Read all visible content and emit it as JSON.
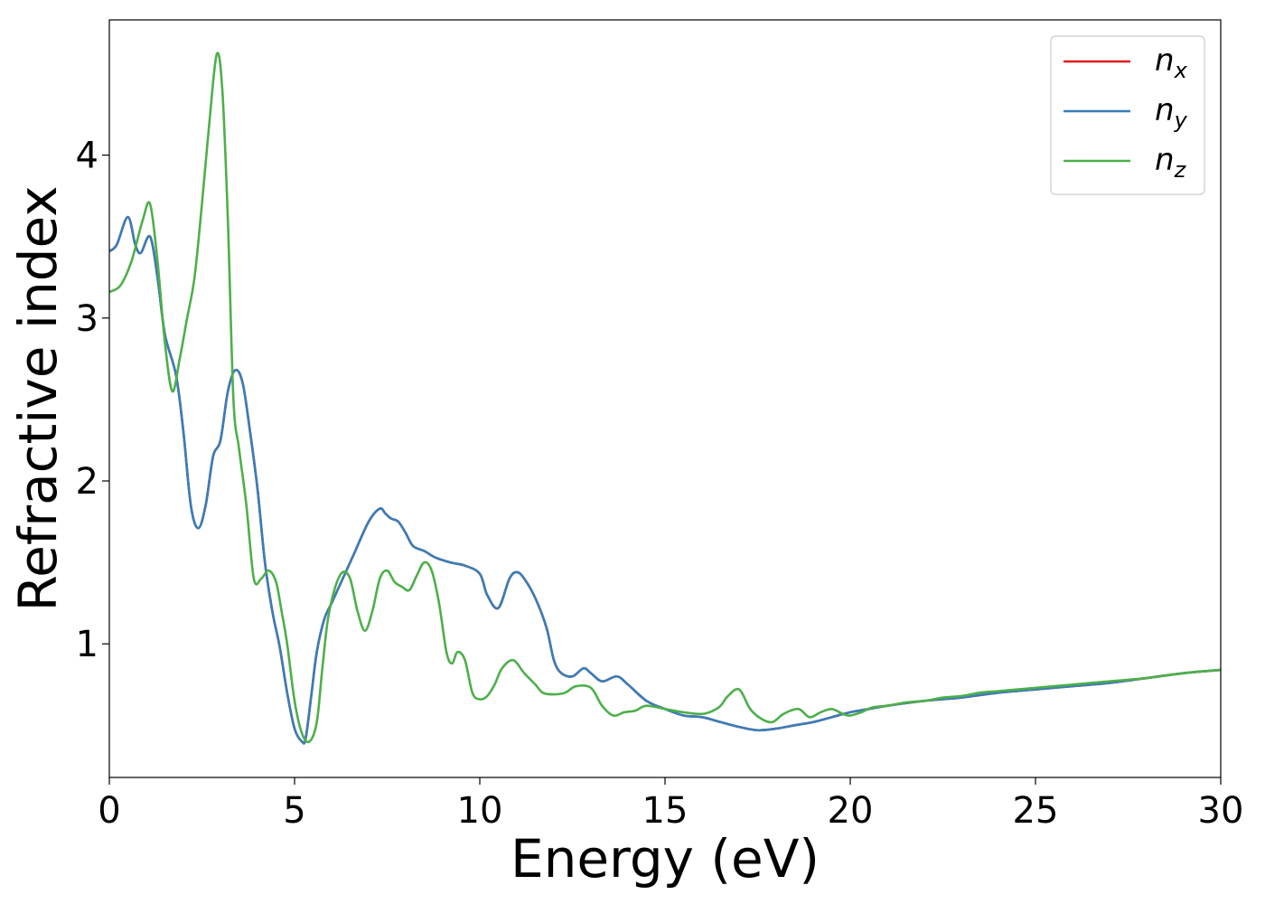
{
  "chart_data": {
    "type": "line",
    "title": "",
    "xlabel": "Energy (eV)",
    "ylabel": "Refractive index",
    "xlim": [
      0,
      30
    ],
    "ylim": [
      0.18,
      4.83
    ],
    "xticks": [
      0,
      5,
      10,
      15,
      20,
      25,
      30
    ],
    "yticks": [
      1,
      2,
      3,
      4
    ],
    "grid": false,
    "legend_position": "top-right",
    "series": [
      {
        "name": "n_x",
        "label_base": "n",
        "label_sub": "x",
        "color": "#e41a1c",
        "x": [
          0,
          0.2,
          0.5,
          0.7,
          0.85,
          1.1,
          1.3,
          1.5,
          1.8,
          2.0,
          2.2,
          2.4,
          2.6,
          2.8,
          3.0,
          3.2,
          3.4,
          3.6,
          3.8,
          4.0,
          4.2,
          4.4,
          4.6,
          4.8,
          5.0,
          5.2,
          5.3,
          5.45,
          5.6,
          5.8,
          6.0,
          6.3,
          6.6,
          7.0,
          7.3,
          7.45,
          7.6,
          7.8,
          8.0,
          8.2,
          8.5,
          8.8,
          9.2,
          9.6,
          10.0,
          10.2,
          10.5,
          10.8,
          11.0,
          11.2,
          11.5,
          11.8,
          12.0,
          12.2,
          12.5,
          12.8,
          13.0,
          13.3,
          13.7,
          14.0,
          14.5,
          15.0,
          15.5,
          16.0,
          16.5,
          17.0,
          17.5,
          18.0,
          18.5,
          19.0,
          19.5,
          20.0,
          20.5,
          21.0,
          22.0,
          23.0,
          24.0,
          25.0,
          26.0,
          27.0,
          28.0,
          29.0,
          30.0
        ],
        "y": [
          3.41,
          3.45,
          3.62,
          3.45,
          3.4,
          3.5,
          3.25,
          2.9,
          2.65,
          2.3,
          1.85,
          1.71,
          1.85,
          2.15,
          2.25,
          2.55,
          2.68,
          2.6,
          2.3,
          1.95,
          1.5,
          1.2,
          0.98,
          0.7,
          0.48,
          0.4,
          0.42,
          0.68,
          0.95,
          1.15,
          1.25,
          1.4,
          1.55,
          1.75,
          1.83,
          1.8,
          1.77,
          1.75,
          1.68,
          1.6,
          1.57,
          1.53,
          1.5,
          1.48,
          1.43,
          1.3,
          1.22,
          1.4,
          1.44,
          1.4,
          1.28,
          1.1,
          0.9,
          0.82,
          0.8,
          0.85,
          0.82,
          0.77,
          0.8,
          0.75,
          0.65,
          0.6,
          0.56,
          0.55,
          0.52,
          0.49,
          0.47,
          0.48,
          0.5,
          0.52,
          0.55,
          0.58,
          0.6,
          0.62,
          0.65,
          0.67,
          0.7,
          0.72,
          0.74,
          0.76,
          0.79,
          0.82,
          0.84
        ]
      },
      {
        "name": "n_y",
        "label_base": "n",
        "label_sub": "y",
        "color": "#377eb8",
        "x": [
          0,
          0.2,
          0.5,
          0.7,
          0.85,
          1.1,
          1.3,
          1.5,
          1.8,
          2.0,
          2.2,
          2.4,
          2.6,
          2.8,
          3.0,
          3.2,
          3.4,
          3.6,
          3.8,
          4.0,
          4.2,
          4.4,
          4.6,
          4.8,
          5.0,
          5.2,
          5.3,
          5.45,
          5.6,
          5.8,
          6.0,
          6.3,
          6.6,
          7.0,
          7.3,
          7.45,
          7.6,
          7.8,
          8.0,
          8.2,
          8.5,
          8.8,
          9.2,
          9.6,
          10.0,
          10.2,
          10.5,
          10.8,
          11.0,
          11.2,
          11.5,
          11.8,
          12.0,
          12.2,
          12.5,
          12.8,
          13.0,
          13.3,
          13.7,
          14.0,
          14.5,
          15.0,
          15.5,
          16.0,
          16.5,
          17.0,
          17.5,
          18.0,
          18.5,
          19.0,
          19.5,
          20.0,
          20.5,
          21.0,
          22.0,
          23.0,
          24.0,
          25.0,
          26.0,
          27.0,
          28.0,
          29.0,
          30.0
        ],
        "y": [
          3.41,
          3.45,
          3.62,
          3.45,
          3.4,
          3.5,
          3.25,
          2.9,
          2.65,
          2.3,
          1.85,
          1.71,
          1.85,
          2.15,
          2.25,
          2.55,
          2.68,
          2.6,
          2.3,
          1.95,
          1.5,
          1.2,
          0.98,
          0.7,
          0.48,
          0.4,
          0.42,
          0.68,
          0.95,
          1.15,
          1.25,
          1.4,
          1.55,
          1.75,
          1.83,
          1.8,
          1.77,
          1.75,
          1.68,
          1.6,
          1.57,
          1.53,
          1.5,
          1.48,
          1.43,
          1.3,
          1.22,
          1.4,
          1.44,
          1.4,
          1.28,
          1.1,
          0.9,
          0.82,
          0.8,
          0.85,
          0.82,
          0.77,
          0.8,
          0.75,
          0.65,
          0.6,
          0.56,
          0.55,
          0.52,
          0.49,
          0.47,
          0.48,
          0.5,
          0.52,
          0.55,
          0.58,
          0.6,
          0.62,
          0.65,
          0.67,
          0.7,
          0.72,
          0.74,
          0.76,
          0.79,
          0.82,
          0.84
        ]
      },
      {
        "name": "n_z",
        "label_base": "n",
        "label_sub": "z",
        "color": "#4daf4a",
        "x": [
          0,
          0.3,
          0.6,
          0.9,
          1.1,
          1.3,
          1.5,
          1.7,
          1.9,
          2.1,
          2.3,
          2.5,
          2.7,
          2.9,
          3.05,
          3.2,
          3.35,
          3.5,
          3.7,
          3.9,
          4.1,
          4.3,
          4.5,
          4.65,
          4.8,
          5.0,
          5.2,
          5.4,
          5.6,
          5.75,
          5.9,
          6.1,
          6.3,
          6.5,
          6.7,
          6.9,
          7.1,
          7.3,
          7.5,
          7.7,
          7.9,
          8.1,
          8.3,
          8.5,
          8.7,
          8.9,
          9.1,
          9.25,
          9.4,
          9.6,
          9.8,
          10.0,
          10.2,
          10.4,
          10.6,
          10.9,
          11.2,
          11.5,
          11.7,
          12.0,
          12.3,
          12.6,
          13.0,
          13.3,
          13.6,
          13.9,
          14.2,
          14.5,
          15.0,
          15.5,
          16.0,
          16.3,
          16.5,
          16.7,
          17.0,
          17.3,
          17.6,
          17.9,
          18.2,
          18.6,
          18.9,
          19.2,
          19.5,
          19.8,
          20.0,
          20.3,
          20.6,
          21.0,
          21.5,
          22.0,
          22.5,
          23.0,
          23.5,
          24.0,
          25.0,
          26.0,
          27.0,
          28.0,
          29.0,
          30.0
        ],
        "y": [
          3.16,
          3.2,
          3.35,
          3.6,
          3.7,
          3.35,
          2.85,
          2.55,
          2.75,
          3.0,
          3.25,
          3.7,
          4.2,
          4.62,
          4.4,
          3.6,
          2.5,
          2.2,
          1.85,
          1.4,
          1.4,
          1.45,
          1.38,
          1.2,
          1.0,
          0.65,
          0.45,
          0.4,
          0.52,
          0.85,
          1.15,
          1.35,
          1.44,
          1.4,
          1.2,
          1.08,
          1.2,
          1.4,
          1.45,
          1.38,
          1.35,
          1.33,
          1.42,
          1.5,
          1.45,
          1.25,
          0.95,
          0.88,
          0.95,
          0.9,
          0.7,
          0.66,
          0.68,
          0.75,
          0.85,
          0.9,
          0.82,
          0.75,
          0.7,
          0.69,
          0.7,
          0.74,
          0.73,
          0.62,
          0.56,
          0.58,
          0.59,
          0.62,
          0.6,
          0.58,
          0.57,
          0.59,
          0.62,
          0.68,
          0.72,
          0.6,
          0.54,
          0.52,
          0.57,
          0.6,
          0.55,
          0.58,
          0.6,
          0.57,
          0.56,
          0.58,
          0.61,
          0.62,
          0.64,
          0.65,
          0.67,
          0.68,
          0.7,
          0.71,
          0.73,
          0.75,
          0.77,
          0.79,
          0.82,
          0.84
        ]
      }
    ]
  }
}
